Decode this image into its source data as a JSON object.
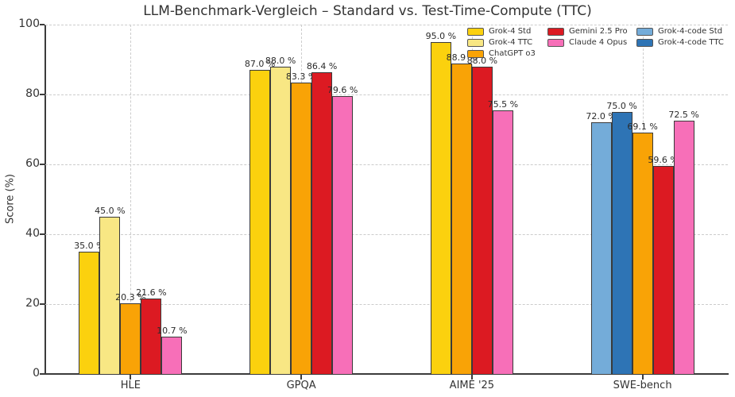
{
  "chart_data": {
    "type": "bar",
    "title": "LLM-Benchmark-Vergleich – Standard vs. Test-Time-Compute (TTC)",
    "ylabel": "Score (%)",
    "ylim": [
      0,
      100
    ],
    "yticks": [
      0,
      20,
      40,
      60,
      80,
      100
    ],
    "grid": "dashed",
    "label_suffix": " %",
    "categories": [
      "HLE",
      "GPQA",
      "AIME '25",
      "SWE-bench"
    ],
    "series": [
      {
        "name": "Grok-4 Std",
        "color": "#FBD10E"
      },
      {
        "name": "Grok-4 TTC",
        "color": "#F8E784"
      },
      {
        "name": "ChatGPT o3",
        "color": "#F9A306"
      },
      {
        "name": "Gemini 2.5 Pro",
        "color": "#DC1A22"
      },
      {
        "name": "Claude 4 Opus",
        "color": "#F76FB8"
      },
      {
        "name": "Grok-4-code Std",
        "color": "#74ACD9"
      },
      {
        "name": "Grok-4-code TTC",
        "color": "#2E74B5"
      }
    ],
    "groups": [
      {
        "category": "HLE",
        "bars": [
          {
            "series": "Grok-4 Std",
            "value": 35.0
          },
          {
            "series": "Grok-4 TTC",
            "value": 45.0
          },
          {
            "series": "ChatGPT o3",
            "value": 20.3
          },
          {
            "series": "Gemini 2.5 Pro",
            "value": 21.6
          },
          {
            "series": "Claude 4 Opus",
            "value": 10.7
          }
        ]
      },
      {
        "category": "GPQA",
        "bars": [
          {
            "series": "Grok-4 Std",
            "value": 87.0
          },
          {
            "series": "Grok-4 TTC",
            "value": 88.0
          },
          {
            "series": "ChatGPT o3",
            "value": 83.3
          },
          {
            "series": "Gemini 2.5 Pro",
            "value": 86.4
          },
          {
            "series": "Claude 4 Opus",
            "value": 79.6
          }
        ]
      },
      {
        "category": "AIME '25",
        "bars": [
          {
            "series": "Grok-4 Std",
            "value": 95.0
          },
          {
            "series": "ChatGPT o3",
            "value": 88.9
          },
          {
            "series": "Gemini 2.5 Pro",
            "value": 88.0
          },
          {
            "series": "Claude 4 Opus",
            "value": 75.5
          }
        ]
      },
      {
        "category": "SWE-bench",
        "bars": [
          {
            "series": "Grok-4-code Std",
            "value": 72.0
          },
          {
            "series": "Grok-4-code TTC",
            "value": 75.0
          },
          {
            "series": "ChatGPT o3",
            "value": 69.1
          },
          {
            "series": "Gemini 2.5 Pro",
            "value": 59.6
          },
          {
            "series": "Claude 4 Opus",
            "value": 72.5
          }
        ]
      }
    ],
    "legend": {
      "position": "upper right",
      "frame": false,
      "columns": [
        [
          "Grok-4 Std",
          "Grok-4 TTC",
          "ChatGPT o3"
        ],
        [
          "Gemini 2.5 Pro",
          "Claude 4 Opus"
        ],
        [
          "Grok-4-code Std",
          "Grok-4-code TTC"
        ]
      ]
    }
  }
}
